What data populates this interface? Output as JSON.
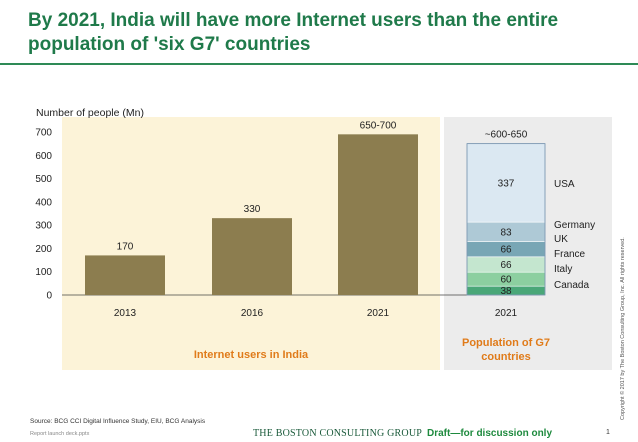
{
  "header": {
    "title": "By 2021, India will have more Internet users than the entire population of 'six G7' countries"
  },
  "chart_data": {
    "type": "bar",
    "ylabel": "Number of people (Mn)",
    "ylim": [
      0,
      700
    ],
    "yticks": [
      0,
      100,
      200,
      300,
      400,
      500,
      600,
      700
    ],
    "bar_color": "#8c7d4f",
    "india": {
      "group_label": "Internet users in India",
      "categories": [
        "2013",
        "2016",
        "2021"
      ],
      "values": [
        170,
        330,
        690
      ],
      "value_labels": [
        "170",
        "330",
        "650-700"
      ],
      "panel_color": "#fcf3d8"
    },
    "g7": {
      "group_label": "Population of G7 countries",
      "category": "2021",
      "total_label": "~600-650",
      "total_outline_value": 650,
      "panel_color": "#ececec",
      "segments": [
        {
          "name": "Canada",
          "value": 38,
          "label": "38",
          "color": "#4aa778"
        },
        {
          "name": "Italy",
          "value": 60,
          "label": "60",
          "color": "#8ccfa0"
        },
        {
          "name": "France",
          "value": 66,
          "label": "66",
          "color": "#c4e6cf"
        },
        {
          "name": "UK",
          "value": 66,
          "label": "66",
          "color": "#78a6b5"
        },
        {
          "name": "Germany",
          "value": 83,
          "label": "83",
          "color": "#aec9d6"
        },
        {
          "name": "USA",
          "value": 337,
          "label": "337",
          "color": "#dbe8f2"
        }
      ]
    }
  },
  "footer": {
    "source": "Source: BCG CCI Digital Influence Study, EIU, BCG Analysis",
    "file": "Report launch deck.pptx",
    "logo": "THE BOSTON CONSULTING GROUP",
    "draft": "Draft—for discussion only",
    "page": "1",
    "copyright": "Copyright © 2017 by The Boston Consulting Group, Inc. All rights reserved."
  }
}
